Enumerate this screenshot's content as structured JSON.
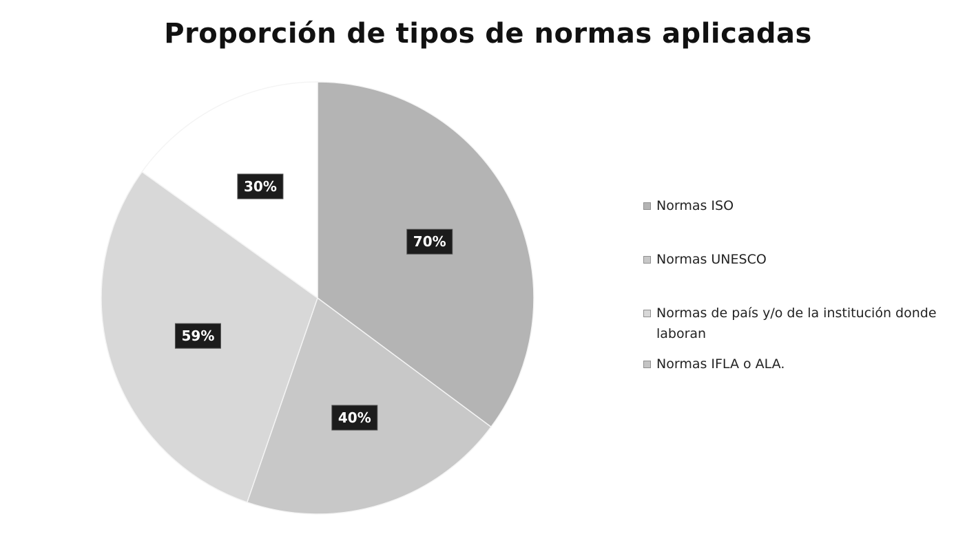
{
  "chart_data": {
    "type": "pie",
    "title": "Proporción de tipos de normas aplicadas",
    "slices": [
      {
        "name": "Normas ISO",
        "value": 70,
        "label": "70%",
        "color": "#b4b4b4"
      },
      {
        "name": "Normas UNESCO",
        "value": 40,
        "label": "40%",
        "color": "#c8c8c8"
      },
      {
        "name": "Normas de país y/o de la institución donde laboran",
        "value": 59,
        "label": "59%",
        "color": "#d8d8d8"
      },
      {
        "name": "Normas IFLA o ALA.",
        "value": 30,
        "label": "30%",
        "color": "#ffffff"
      }
    ],
    "legend_position": "right",
    "label_style": {
      "background": "#1c1c1c",
      "text_color": "#ffffff"
    }
  }
}
